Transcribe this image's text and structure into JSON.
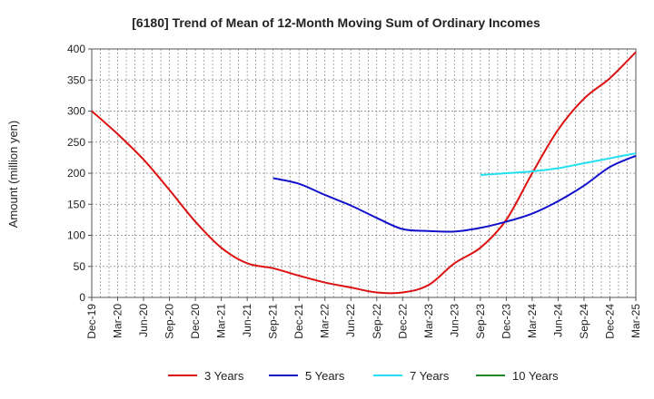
{
  "chart_data": {
    "type": "line",
    "title": "[6180]  Trend of Mean of 12-Month Moving Sum of Ordinary Incomes",
    "xlabel": "",
    "ylabel": "Amount (million yen)",
    "ylim": [
      0,
      400
    ],
    "yticks": [
      0,
      50,
      100,
      150,
      200,
      250,
      300,
      350,
      400
    ],
    "grid": true,
    "legend_position": "bottom",
    "categories": [
      "Dec-19",
      "Mar-20",
      "Jun-20",
      "Sep-20",
      "Dec-20",
      "Mar-21",
      "Jun-21",
      "Sep-21",
      "Dec-21",
      "Mar-22",
      "Jun-22",
      "Sep-22",
      "Dec-22",
      "Mar-23",
      "Jun-23",
      "Sep-23",
      "Dec-23",
      "Mar-24",
      "Jun-24",
      "Sep-24",
      "Dec-24",
      "Mar-25"
    ],
    "series": [
      {
        "name": "3 Years",
        "color": "#dd1111",
        "points": [
          [
            0,
            300
          ],
          [
            1,
            263
          ],
          [
            2,
            222
          ],
          [
            3,
            173
          ],
          [
            4,
            122
          ],
          [
            5,
            80
          ],
          [
            6,
            55
          ],
          [
            7,
            47
          ],
          [
            8,
            35
          ],
          [
            9,
            24
          ],
          [
            10,
            16
          ],
          [
            11,
            8
          ],
          [
            12,
            8
          ],
          [
            13,
            20
          ],
          [
            14,
            55
          ],
          [
            15,
            80
          ],
          [
            16,
            125
          ],
          [
            17,
            200
          ],
          [
            18,
            270
          ],
          [
            19,
            320
          ],
          [
            20,
            353
          ],
          [
            21,
            395
          ]
        ]
      },
      {
        "name": "5 Years",
        "color": "#1111cc",
        "points": [
          [
            7,
            192
          ],
          [
            8,
            183
          ],
          [
            9,
            165
          ],
          [
            10,
            148
          ],
          [
            11,
            128
          ],
          [
            12,
            110
          ],
          [
            13,
            107
          ],
          [
            14,
            106
          ],
          [
            15,
            112
          ],
          [
            16,
            122
          ],
          [
            17,
            135
          ],
          [
            18,
            155
          ],
          [
            19,
            180
          ],
          [
            20,
            210
          ],
          [
            21,
            228
          ]
        ]
      },
      {
        "name": "7 Years",
        "color": "#22e0f0",
        "points": [
          [
            15,
            197
          ],
          [
            16,
            200
          ],
          [
            17,
            203
          ],
          [
            18,
            208
          ],
          [
            19,
            216
          ],
          [
            20,
            224
          ],
          [
            21,
            232
          ]
        ]
      },
      {
        "name": "10 Years",
        "color": "#228822",
        "points": []
      }
    ]
  }
}
